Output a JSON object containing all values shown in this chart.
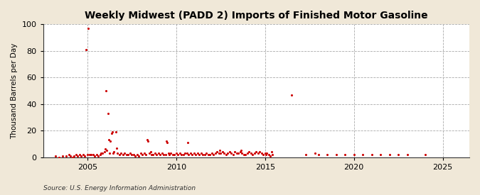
{
  "title": "Weekly Midwest (PADD 2) Imports of Finished Motor Gasoline",
  "ylabel": "Thousand Barrels per Day",
  "source": "Source: U.S. Energy Information Administration",
  "xlim": [
    2002.5,
    2026.5
  ],
  "ylim": [
    0,
    100
  ],
  "yticks": [
    0,
    20,
    40,
    60,
    80,
    100
  ],
  "xticks": [
    2005,
    2010,
    2015,
    2020,
    2025
  ],
  "figure_bg_color": "#f0e8d8",
  "axes_bg_color": "#ffffff",
  "dot_color": "#cc0000",
  "dot_size": 5,
  "data_points": [
    [
      2003.2,
      1
    ],
    [
      2003.4,
      0
    ],
    [
      2003.6,
      1
    ],
    [
      2003.8,
      1
    ],
    [
      2003.95,
      2
    ],
    [
      2004.05,
      1
    ],
    [
      2004.15,
      0
    ],
    [
      2004.25,
      1
    ],
    [
      2004.35,
      2
    ],
    [
      2004.45,
      1
    ],
    [
      2004.55,
      2
    ],
    [
      2004.65,
      1
    ],
    [
      2004.75,
      2
    ],
    [
      2004.85,
      1
    ],
    [
      2004.92,
      81
    ],
    [
      2005.0,
      2
    ],
    [
      2005.05,
      97
    ],
    [
      2005.1,
      2
    ],
    [
      2005.2,
      2
    ],
    [
      2005.3,
      2
    ],
    [
      2005.4,
      1
    ],
    [
      2005.5,
      2
    ],
    [
      2005.6,
      1
    ],
    [
      2005.7,
      2
    ],
    [
      2005.75,
      3
    ],
    [
      2005.85,
      3
    ],
    [
      2005.95,
      4
    ],
    [
      2006.0,
      6
    ],
    [
      2006.05,
      50
    ],
    [
      2006.1,
      5
    ],
    [
      2006.15,
      33
    ],
    [
      2006.2,
      13
    ],
    [
      2006.25,
      3
    ],
    [
      2006.3,
      12
    ],
    [
      2006.35,
      18
    ],
    [
      2006.4,
      19
    ],
    [
      2006.45,
      3
    ],
    [
      2006.5,
      4
    ],
    [
      2006.6,
      19
    ],
    [
      2006.65,
      7
    ],
    [
      2006.7,
      3
    ],
    [
      2006.8,
      2
    ],
    [
      2006.9,
      3
    ],
    [
      2007.0,
      2
    ],
    [
      2007.1,
      3
    ],
    [
      2007.2,
      2
    ],
    [
      2007.3,
      2
    ],
    [
      2007.4,
      3
    ],
    [
      2007.5,
      2
    ],
    [
      2007.6,
      2
    ],
    [
      2007.7,
      1
    ],
    [
      2007.8,
      2
    ],
    [
      2007.9,
      1
    ],
    [
      2008.0,
      3
    ],
    [
      2008.1,
      2
    ],
    [
      2008.2,
      3
    ],
    [
      2008.3,
      2
    ],
    [
      2008.35,
      13
    ],
    [
      2008.4,
      12
    ],
    [
      2008.5,
      3
    ],
    [
      2008.55,
      4
    ],
    [
      2008.6,
      2
    ],
    [
      2008.7,
      2
    ],
    [
      2008.8,
      3
    ],
    [
      2008.9,
      2
    ],
    [
      2009.0,
      3
    ],
    [
      2009.1,
      2
    ],
    [
      2009.2,
      3
    ],
    [
      2009.3,
      2
    ],
    [
      2009.4,
      2
    ],
    [
      2009.45,
      12
    ],
    [
      2009.5,
      11
    ],
    [
      2009.55,
      3
    ],
    [
      2009.6,
      2
    ],
    [
      2009.7,
      3
    ],
    [
      2009.8,
      2
    ],
    [
      2009.9,
      2
    ],
    [
      2010.0,
      3
    ],
    [
      2010.1,
      2
    ],
    [
      2010.2,
      3
    ],
    [
      2010.3,
      2
    ],
    [
      2010.4,
      2
    ],
    [
      2010.5,
      3
    ],
    [
      2010.6,
      3
    ],
    [
      2010.65,
      11
    ],
    [
      2010.7,
      2
    ],
    [
      2010.8,
      3
    ],
    [
      2010.9,
      2
    ],
    [
      2011.0,
      3
    ],
    [
      2011.1,
      2
    ],
    [
      2011.2,
      3
    ],
    [
      2011.3,
      2
    ],
    [
      2011.4,
      3
    ],
    [
      2011.5,
      2
    ],
    [
      2011.6,
      2
    ],
    [
      2011.7,
      3
    ],
    [
      2011.8,
      2
    ],
    [
      2011.9,
      2
    ],
    [
      2012.0,
      3
    ],
    [
      2012.1,
      2
    ],
    [
      2012.2,
      3
    ],
    [
      2012.3,
      4
    ],
    [
      2012.4,
      3
    ],
    [
      2012.45,
      5
    ],
    [
      2012.5,
      3
    ],
    [
      2012.6,
      4
    ],
    [
      2012.7,
      3
    ],
    [
      2012.8,
      2
    ],
    [
      2012.9,
      3
    ],
    [
      2013.0,
      4
    ],
    [
      2013.1,
      3
    ],
    [
      2013.2,
      2
    ],
    [
      2013.3,
      4
    ],
    [
      2013.4,
      3
    ],
    [
      2013.5,
      3
    ],
    [
      2013.6,
      4
    ],
    [
      2013.65,
      5
    ],
    [
      2013.7,
      3
    ],
    [
      2013.8,
      2
    ],
    [
      2013.9,
      2
    ],
    [
      2014.0,
      3
    ],
    [
      2014.1,
      4
    ],
    [
      2014.2,
      3
    ],
    [
      2014.3,
      2
    ],
    [
      2014.4,
      3
    ],
    [
      2014.5,
      4
    ],
    [
      2014.6,
      3
    ],
    [
      2014.7,
      4
    ],
    [
      2014.8,
      3
    ],
    [
      2014.9,
      2
    ],
    [
      2015.0,
      3
    ],
    [
      2015.05,
      2
    ],
    [
      2015.1,
      3
    ],
    [
      2015.2,
      2
    ],
    [
      2015.3,
      1
    ],
    [
      2015.35,
      4
    ],
    [
      2015.4,
      2
    ],
    [
      2016.5,
      47
    ],
    [
      2017.3,
      2
    ],
    [
      2017.8,
      3
    ],
    [
      2018.0,
      2
    ],
    [
      2018.5,
      2
    ],
    [
      2019.0,
      2
    ],
    [
      2019.5,
      2
    ],
    [
      2020.0,
      2
    ],
    [
      2020.5,
      2
    ],
    [
      2021.0,
      2
    ],
    [
      2021.5,
      2
    ],
    [
      2022.0,
      2
    ],
    [
      2022.5,
      2
    ],
    [
      2023.0,
      2
    ],
    [
      2024.0,
      2
    ]
  ]
}
